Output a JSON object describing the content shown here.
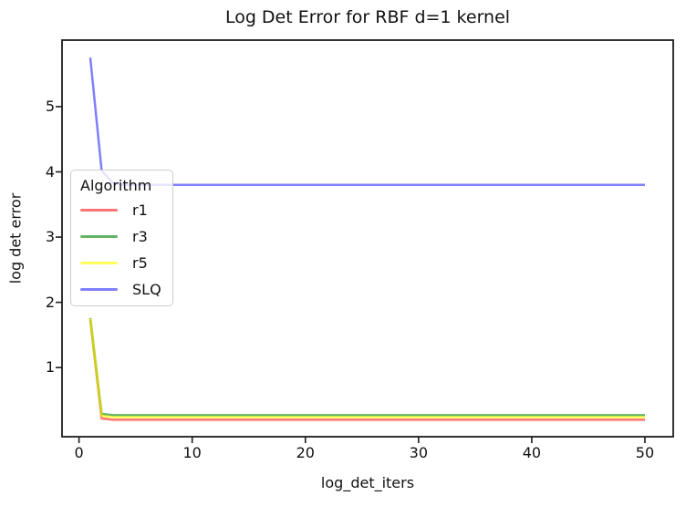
{
  "chart_data": {
    "type": "line",
    "title": "Log Det Error for RBF d=1 kernel",
    "xlabel": "log_det_iters",
    "ylabel": "log det error",
    "legend_title": "Algorithm",
    "legend_position": "upper-left-inside",
    "grid": false,
    "background": "#ffffff",
    "spine_color": "#1c1c1c",
    "xlim": [
      -1.5,
      52.5
    ],
    "ylim": [
      -0.06,
      6.02
    ],
    "x_ticks": [
      0,
      10,
      20,
      30,
      40,
      50
    ],
    "y_ticks": [
      1,
      2,
      3,
      4,
      5
    ],
    "x": [
      1,
      2,
      3,
      4,
      5,
      10,
      15,
      20,
      25,
      30,
      35,
      40,
      45,
      50
    ],
    "series": [
      {
        "name": "r1",
        "color": "#ff0000",
        "opacity": 0.55,
        "values": [
          1.73,
          0.22,
          0.2,
          0.2,
          0.2,
          0.2,
          0.2,
          0.2,
          0.2,
          0.2,
          0.2,
          0.2,
          0.2,
          0.2
        ]
      },
      {
        "name": "r3",
        "color": "#008000",
        "opacity": 0.6,
        "values": [
          1.76,
          0.29,
          0.27,
          0.27,
          0.27,
          0.27,
          0.27,
          0.27,
          0.27,
          0.27,
          0.27,
          0.27,
          0.27,
          0.27
        ]
      },
      {
        "name": "r5",
        "color": "#ffff00",
        "opacity": 0.65,
        "values": [
          1.75,
          0.26,
          0.24,
          0.24,
          0.24,
          0.24,
          0.24,
          0.24,
          0.24,
          0.24,
          0.24,
          0.24,
          0.24,
          0.24
        ]
      },
      {
        "name": "SLQ",
        "color": "#0000ff",
        "opacity": 0.5,
        "values": [
          5.75,
          4.02,
          3.83,
          3.8,
          3.8,
          3.8,
          3.8,
          3.8,
          3.8,
          3.8,
          3.8,
          3.8,
          3.8,
          3.8
        ]
      }
    ]
  }
}
